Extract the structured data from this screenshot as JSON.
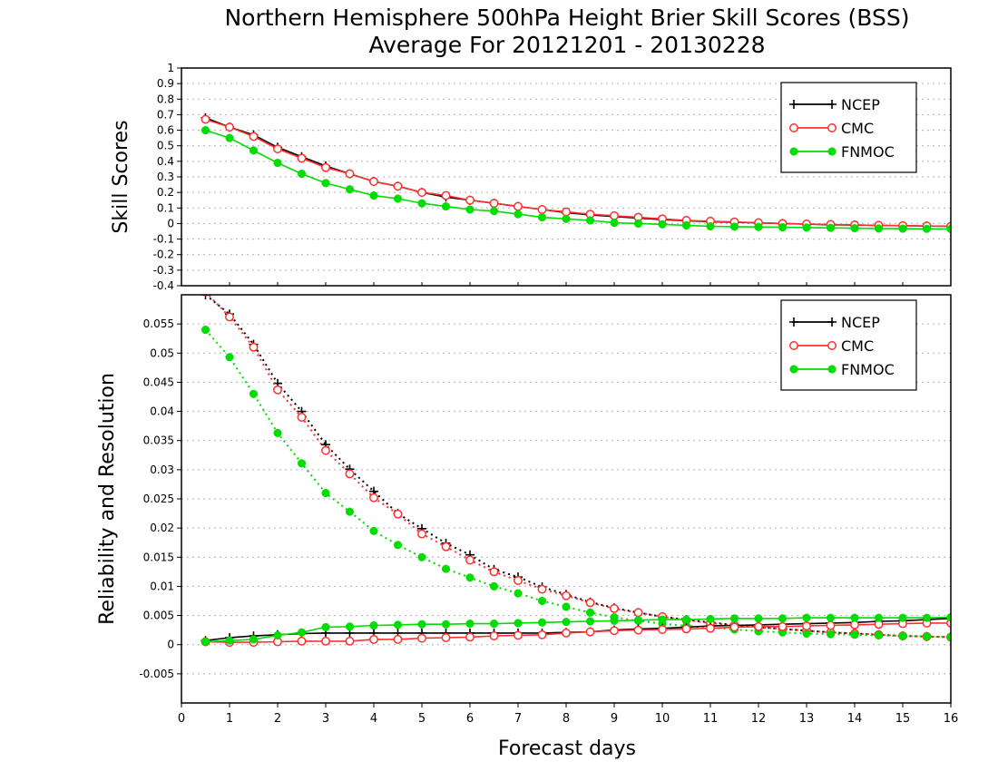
{
  "chart_data": [
    {
      "type": "line",
      "title": "Northern Hemisphere 500hPa Height Brier Skill Scores (BSS)",
      "subtitle": "Average For 20121201 - 20130228",
      "ylabel": "Skill Scores",
      "ylim": [
        -0.4,
        1
      ],
      "yticks": [
        1,
        0.9,
        0.8,
        0.7,
        0.6,
        0.5,
        0.4,
        0.3,
        0.2,
        0.1,
        0,
        -0.1,
        -0.2,
        -0.3,
        -0.4
      ],
      "grid": true,
      "legend_position": "top-right",
      "x": [
        0.5,
        1,
        1.5,
        2,
        2.5,
        3,
        3.5,
        4,
        4.5,
        5,
        5.5,
        6,
        6.5,
        7,
        7.5,
        8,
        8.5,
        9,
        9.5,
        10,
        10.5,
        11,
        11.5,
        12,
        12.5,
        13,
        13.5,
        14,
        14.5,
        15,
        15.5,
        16
      ],
      "series": [
        {
          "name": "NCEP",
          "color": "#000000",
          "marker": "plus",
          "values": [
            0.68,
            0.62,
            0.57,
            0.49,
            0.43,
            0.37,
            0.32,
            0.27,
            0.24,
            0.2,
            0.17,
            0.15,
            0.13,
            0.11,
            0.09,
            0.07,
            0.055,
            0.045,
            0.035,
            0.025,
            0.018,
            0.012,
            0.008,
            0.004,
            0.0,
            -0.004,
            -0.008,
            -0.01,
            -0.012,
            -0.014,
            -0.016,
            -0.018
          ]
        },
        {
          "name": "CMC",
          "color": "#ff3030",
          "marker": "open-circle",
          "values": [
            0.67,
            0.62,
            0.56,
            0.48,
            0.42,
            0.36,
            0.32,
            0.27,
            0.24,
            0.2,
            0.18,
            0.15,
            0.13,
            0.11,
            0.09,
            0.075,
            0.06,
            0.05,
            0.04,
            0.03,
            0.02,
            0.015,
            0.01,
            0.005,
            0.0,
            -0.003,
            -0.006,
            -0.009,
            -0.012,
            -0.014,
            -0.016,
            -0.018
          ]
        },
        {
          "name": "FNMOC",
          "color": "#00dd00",
          "marker": "filled-circle",
          "values": [
            0.6,
            0.55,
            0.47,
            0.39,
            0.32,
            0.26,
            0.22,
            0.18,
            0.16,
            0.13,
            0.11,
            0.09,
            0.08,
            0.06,
            0.04,
            0.03,
            0.02,
            0.005,
            0.0,
            -0.005,
            -0.012,
            -0.018,
            -0.02,
            -0.022,
            -0.024,
            -0.026,
            -0.028,
            -0.03,
            -0.032,
            -0.033,
            -0.034,
            -0.035
          ]
        }
      ]
    },
    {
      "type": "line",
      "ylabel": "Reliability and Resolution",
      "xlabel": "Forecast days",
      "xlim": [
        0,
        16
      ],
      "xticks": [
        0,
        1,
        2,
        3,
        4,
        5,
        6,
        7,
        8,
        9,
        10,
        11,
        12,
        13,
        14,
        15,
        16
      ],
      "ylim": [
        -0.01,
        0.06
      ],
      "yticks": [
        0.055,
        0.05,
        0.045,
        0.04,
        0.035,
        0.03,
        0.025,
        0.02,
        0.015,
        0.01,
        0.005,
        0,
        -0.005
      ],
      "grid": true,
      "legend_position": "top-right",
      "x": [
        0.5,
        1,
        1.5,
        2,
        2.5,
        3,
        3.5,
        4,
        4.5,
        5,
        5.5,
        6,
        6.5,
        7,
        7.5,
        8,
        8.5,
        9,
        9.5,
        10,
        10.5,
        11,
        11.5,
        12,
        12.5,
        13,
        13.5,
        14,
        14.5,
        15,
        15.5,
        16
      ],
      "series": [
        {
          "name": "NCEP",
          "color": "#000000",
          "marker": "plus",
          "line": "dotted",
          "values": [
            0.06,
            0.0567,
            0.0515,
            0.0448,
            0.04,
            0.0343,
            0.0301,
            0.0263,
            0.0225,
            0.0199,
            0.0174,
            0.0154,
            0.0129,
            0.0116,
            0.0099,
            0.0086,
            0.0073,
            0.0063,
            0.0055,
            0.0048,
            0.0043,
            0.0038,
            0.0034,
            0.003,
            0.0027,
            0.0024,
            0.0021,
            0.0019,
            0.0017,
            0.0015,
            0.0014,
            0.0013
          ]
        },
        {
          "name": "CMC",
          "color": "#ff3030",
          "marker": "open-circle",
          "line": "dotted",
          "values": [
            0.0605,
            0.0562,
            0.051,
            0.0437,
            0.039,
            0.0333,
            0.0293,
            0.0252,
            0.0224,
            0.019,
            0.0168,
            0.0145,
            0.0125,
            0.011,
            0.0095,
            0.0084,
            0.0072,
            0.0062,
            0.0055,
            0.0048,
            0.0042,
            0.0037,
            0.0033,
            0.003,
            0.0027,
            0.0024,
            0.0021,
            0.0019,
            0.0017,
            0.0015,
            0.0014,
            0.0013
          ]
        },
        {
          "name": "FNMOC",
          "color": "#00dd00",
          "marker": "filled-circle",
          "line": "dotted",
          "values": [
            0.054,
            0.0493,
            0.043,
            0.0363,
            0.0311,
            0.026,
            0.0228,
            0.0195,
            0.0171,
            0.015,
            0.013,
            0.0115,
            0.01,
            0.0088,
            0.0075,
            0.0065,
            0.0055,
            0.0047,
            0.0041,
            0.0036,
            0.0032,
            0.0029,
            0.0026,
            0.0023,
            0.0021,
            0.0019,
            0.0018,
            0.0017,
            0.0016,
            0.0015,
            0.0014,
            0.0013
          ]
        },
        {
          "name": "NCEP",
          "color": "#000000",
          "marker": "plus",
          "line": "solid",
          "legend": false,
          "values": [
            0.0007,
            0.0012,
            0.0015,
            0.0017,
            0.0019,
            0.002,
            0.002,
            0.002,
            0.002,
            0.002,
            0.002,
            0.002,
            0.002,
            0.002,
            0.002,
            0.0021,
            0.0022,
            0.0025,
            0.0027,
            0.0028,
            0.003,
            0.0032,
            0.0033,
            0.0034,
            0.0035,
            0.0036,
            0.0037,
            0.0038,
            0.004,
            0.0041,
            0.0043,
            0.0045
          ]
        },
        {
          "name": "CMC",
          "color": "#ff3030",
          "marker": "open-circle",
          "line": "solid",
          "legend": false,
          "values": [
            0.0005,
            0.0004,
            0.0004,
            0.0005,
            0.0006,
            0.0006,
            0.0006,
            0.0009,
            0.0009,
            0.0011,
            0.0012,
            0.0013,
            0.0015,
            0.0016,
            0.0017,
            0.002,
            0.0022,
            0.0024,
            0.0025,
            0.0026,
            0.0027,
            0.0028,
            0.003,
            0.0031,
            0.0031,
            0.0032,
            0.0033,
            0.0034,
            0.0035,
            0.0036,
            0.0037,
            0.0037
          ]
        },
        {
          "name": "FNMOC",
          "color": "#00dd00",
          "marker": "filled-circle",
          "line": "solid",
          "legend": false,
          "values": [
            0.0005,
            0.0007,
            0.0009,
            0.0016,
            0.0021,
            0.003,
            0.0031,
            0.0033,
            0.0034,
            0.0035,
            0.0035,
            0.0036,
            0.0036,
            0.0037,
            0.0038,
            0.0039,
            0.004,
            0.0041,
            0.0042,
            0.0043,
            0.0043,
            0.0044,
            0.0045,
            0.0045,
            0.0045,
            0.0046,
            0.0046,
            0.0046,
            0.0046,
            0.0046,
            0.0046,
            0.0047
          ]
        }
      ]
    }
  ]
}
